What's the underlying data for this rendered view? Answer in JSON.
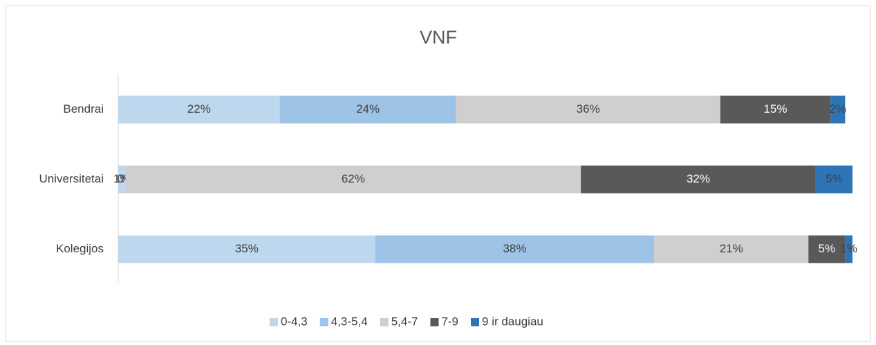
{
  "chart_data": {
    "type": "stacked-bar-horizontal",
    "title": "VNF",
    "categories": [
      "Bendrai",
      "Universitetai",
      "Kolegijos"
    ],
    "xlim": [
      0,
      100
    ],
    "series": [
      {
        "name": "0-4,3",
        "color": "#bdd7ee",
        "values": [
          22,
          1,
          35
        ],
        "value_labels": [
          "22%",
          "1%",
          "35%"
        ]
      },
      {
        "name": "4,3-5,4",
        "color": "#9dc3e6",
        "values": [
          24,
          0,
          38
        ],
        "value_labels": [
          "24%",
          "0%",
          "38%"
        ]
      },
      {
        "name": "5,4-7",
        "color": "#d0cece",
        "values": [
          36,
          62,
          21
        ],
        "value_labels": [
          "36%",
          "62%",
          "21%"
        ]
      },
      {
        "name": "7-9",
        "color": "#595959",
        "values": [
          15,
          32,
          5
        ],
        "value_labels": [
          "15%",
          "32%",
          "5%"
        ]
      },
      {
        "name": "9 ir daugiau",
        "color": "#2e75b6",
        "values": [
          2,
          5,
          1
        ],
        "value_labels": [
          "2%",
          "5%",
          "1%"
        ]
      }
    ],
    "legend": "bottom"
  }
}
